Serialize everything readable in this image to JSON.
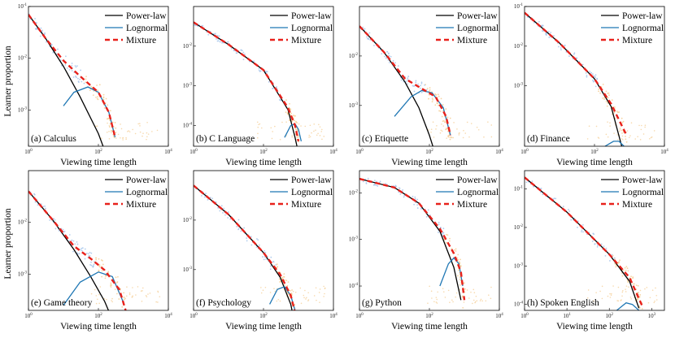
{
  "figure": {
    "ylabel": "Learner proportion",
    "xlabel": "Viewing time length",
    "legend": [
      "Power-law",
      "Lognormal",
      "Mixture"
    ],
    "legend_position": "top-right",
    "colors": {
      "power_law": "#000000",
      "lognormal": "#1f77b4",
      "mixture": "#e8211b",
      "scatter_blue": "#a8c8ec",
      "scatter_orange": "#f5cf98"
    }
  },
  "chart_data": [
    {
      "type": "line",
      "label": "(a) Calculus",
      "xscale": "log",
      "yscale": "log",
      "xlim": [
        1,
        10000
      ],
      "ylim": [
        0.0002,
        0.1
      ],
      "xticks": [
        "10^0",
        "10^2",
        "10^4"
      ],
      "yticks": [
        "10^-3",
        "10^-2",
        "10^-1"
      ],
      "series": [
        {
          "name": "Power-law",
          "x": [
            1,
            3,
            10,
            30,
            100,
            200
          ],
          "y": [
            0.07,
            0.025,
            0.007,
            0.0018,
            0.00035,
            0.0001
          ]
        },
        {
          "name": "Lognormal",
          "x": [
            10,
            20,
            50,
            100,
            200,
            300
          ],
          "y": [
            0.0012,
            0.0022,
            0.0028,
            0.0022,
            0.0009,
            0.0003
          ]
        },
        {
          "name": "Mixture",
          "x": [
            1,
            3,
            10,
            30,
            100,
            200,
            300
          ],
          "y": [
            0.07,
            0.025,
            0.009,
            0.0045,
            0.0022,
            0.0009,
            0.0003
          ]
        }
      ]
    },
    {
      "type": "line",
      "label": "(b) C Language",
      "xscale": "log",
      "yscale": "log",
      "xlim": [
        1,
        10000
      ],
      "ylim": [
        3e-05,
        0.1
      ],
      "xticks": [
        "10^0",
        "10^2",
        "10^4"
      ],
      "yticks": [
        "10^-4",
        "10^-3",
        "10^-2"
      ],
      "series": [
        {
          "name": "Power-law",
          "x": [
            1,
            10,
            100,
            500,
            800,
            1000
          ],
          "y": [
            0.04,
            0.011,
            0.0025,
            0.00025,
            5e-05,
            2e-05
          ]
        },
        {
          "name": "Lognormal",
          "x": [
            400,
            600,
            800,
            1000,
            1200
          ],
          "y": [
            5e-05,
            0.0001,
            0.00011,
            8e-05,
            4e-05
          ]
        },
        {
          "name": "Mixture",
          "x": [
            1,
            10,
            100,
            500,
            800,
            1000
          ],
          "y": [
            0.04,
            0.011,
            0.0025,
            0.00028,
            0.0001,
            4e-05
          ]
        }
      ]
    },
    {
      "type": "line",
      "label": "(c) Etiquette",
      "xscale": "log",
      "yscale": "log",
      "xlim": [
        1,
        10000
      ],
      "ylim": [
        0.00015,
        0.1
      ],
      "xticks": [
        "10^0",
        "10^2",
        "10^4"
      ],
      "yticks": [
        "10^-3",
        "10^-2"
      ],
      "series": [
        {
          "name": "Power-law",
          "x": [
            1,
            5,
            20,
            50,
            100,
            150
          ],
          "y": [
            0.04,
            0.012,
            0.003,
            0.0009,
            0.00025,
            0.0001
          ]
        },
        {
          "name": "Lognormal",
          "x": [
            10,
            30,
            60,
            120,
            250,
            400
          ],
          "y": [
            0.0006,
            0.0015,
            0.002,
            0.0018,
            0.0009,
            0.00025
          ]
        },
        {
          "name": "Mixture",
          "x": [
            1,
            5,
            20,
            60,
            150,
            300,
            400
          ],
          "y": [
            0.04,
            0.012,
            0.0035,
            0.0022,
            0.0015,
            0.0006,
            0.00025
          ]
        }
      ]
    },
    {
      "type": "line",
      "label": "(d) Finance",
      "xscale": "log",
      "yscale": "log",
      "xlim": [
        1,
        10000
      ],
      "ylim": [
        3e-05,
        0.1
      ],
      "xticks": [
        "10^0",
        "10^2",
        "10^4"
      ],
      "yticks": [
        "10^-3",
        "10^-2",
        "10^-1"
      ],
      "series": [
        {
          "name": "Power-law",
          "x": [
            1,
            10,
            100,
            300,
            600
          ],
          "y": [
            0.07,
            0.012,
            0.0015,
            0.0003,
            3e-05
          ]
        },
        {
          "name": "Lognormal",
          "x": [
            200,
            350,
            500,
            700
          ],
          "y": [
            3e-05,
            4e-05,
            4e-05,
            3e-05
          ]
        },
        {
          "name": "Mixture",
          "x": [
            1,
            10,
            100,
            300,
            800
          ],
          "y": [
            0.07,
            0.012,
            0.0015,
            0.00035,
            6e-05
          ]
        }
      ]
    },
    {
      "type": "line",
      "label": "(e) Game theory",
      "xscale": "log",
      "yscale": "log",
      "xlim": [
        1,
        10000
      ],
      "ylim": [
        0.0002,
        0.1
      ],
      "xticks": [
        "10^0",
        "10^2",
        "10^4"
      ],
      "yticks": [
        "10^-3",
        "10^-2"
      ],
      "series": [
        {
          "name": "Power-law",
          "x": [
            1,
            5,
            20,
            60,
            150,
            300
          ],
          "y": [
            0.04,
            0.011,
            0.003,
            0.0009,
            0.0003,
            0.0001
          ]
        },
        {
          "name": "Lognormal",
          "x": [
            10,
            30,
            100,
            250,
            500
          ],
          "y": [
            0.00025,
            0.0007,
            0.0011,
            0.0009,
            0.0003
          ]
        },
        {
          "name": "Mixture",
          "x": [
            1,
            5,
            20,
            60,
            150,
            400,
            600
          ],
          "y": [
            0.04,
            0.011,
            0.0035,
            0.002,
            0.0012,
            0.0005,
            0.0002
          ]
        }
      ]
    },
    {
      "type": "line",
      "label": "(f) Psychology",
      "xscale": "log",
      "yscale": "log",
      "xlim": [
        1,
        10000
      ],
      "ylim": [
        0.00015,
        0.1
      ],
      "xticks": [
        "10^0",
        "10^2",
        "10^4"
      ],
      "yticks": [
        "10^-3",
        "10^-2"
      ],
      "series": [
        {
          "name": "Power-law",
          "x": [
            1,
            10,
            100,
            300,
            600,
            900
          ],
          "y": [
            0.05,
            0.013,
            0.0022,
            0.0007,
            0.0002,
            5e-05
          ]
        },
        {
          "name": "Lognormal",
          "x": [
            150,
            250,
            400,
            600,
            800
          ],
          "y": [
            0.0002,
            0.0004,
            0.00045,
            0.0003,
            0.00015
          ]
        },
        {
          "name": "Mixture",
          "x": [
            1,
            10,
            100,
            300,
            600,
            900
          ],
          "y": [
            0.05,
            0.013,
            0.0022,
            0.0008,
            0.0003,
            0.0001
          ]
        }
      ]
    },
    {
      "type": "line",
      "label": "(g) Python",
      "xscale": "log",
      "yscale": "log",
      "xlim": [
        1,
        10000
      ],
      "ylim": [
        3e-05,
        0.03
      ],
      "xticks": [
        "10^0",
        "10^2",
        "10^4"
      ],
      "yticks": [
        "10^-4",
        "10^-3",
        "10^-2"
      ],
      "series": [
        {
          "name": "Power-law",
          "x": [
            1,
            10,
            50,
            200,
            500,
            800
          ],
          "y": [
            0.02,
            0.013,
            0.006,
            0.0015,
            0.00025,
            5e-05
          ]
        },
        {
          "name": "Lognormal",
          "x": [
            200,
            350,
            500,
            700,
            900
          ],
          "y": [
            0.0001,
            0.0003,
            0.0004,
            0.0003,
            0.0001
          ]
        },
        {
          "name": "Mixture",
          "x": [
            1,
            10,
            50,
            200,
            500,
            800,
            1000
          ],
          "y": [
            0.02,
            0.013,
            0.006,
            0.0017,
            0.0005,
            0.0002,
            5e-05
          ]
        }
      ]
    },
    {
      "type": "line",
      "label": "(h) Spoken English",
      "xscale": "log",
      "yscale": "log",
      "xlim": [
        1,
        2000
      ],
      "ylim": [
        7e-05,
        0.3
      ],
      "xticks": [
        "10^0",
        "10^1",
        "10^2",
        "10^3"
      ],
      "yticks": [
        "10^-4",
        "10^-3",
        "10^-2",
        "10^-1"
      ],
      "series": [
        {
          "name": "Power-law",
          "x": [
            1,
            10,
            100,
            300,
            500
          ],
          "y": [
            0.2,
            0.025,
            0.002,
            0.0004,
            8e-05
          ]
        },
        {
          "name": "Lognormal",
          "x": [
            150,
            250,
            350,
            500
          ],
          "y": [
            7e-05,
            0.00011,
            0.0001,
            7e-05
          ]
        },
        {
          "name": "Mixture",
          "x": [
            1,
            10,
            100,
            300,
            600
          ],
          "y": [
            0.2,
            0.025,
            0.002,
            0.0005,
            9e-05
          ]
        }
      ]
    }
  ]
}
